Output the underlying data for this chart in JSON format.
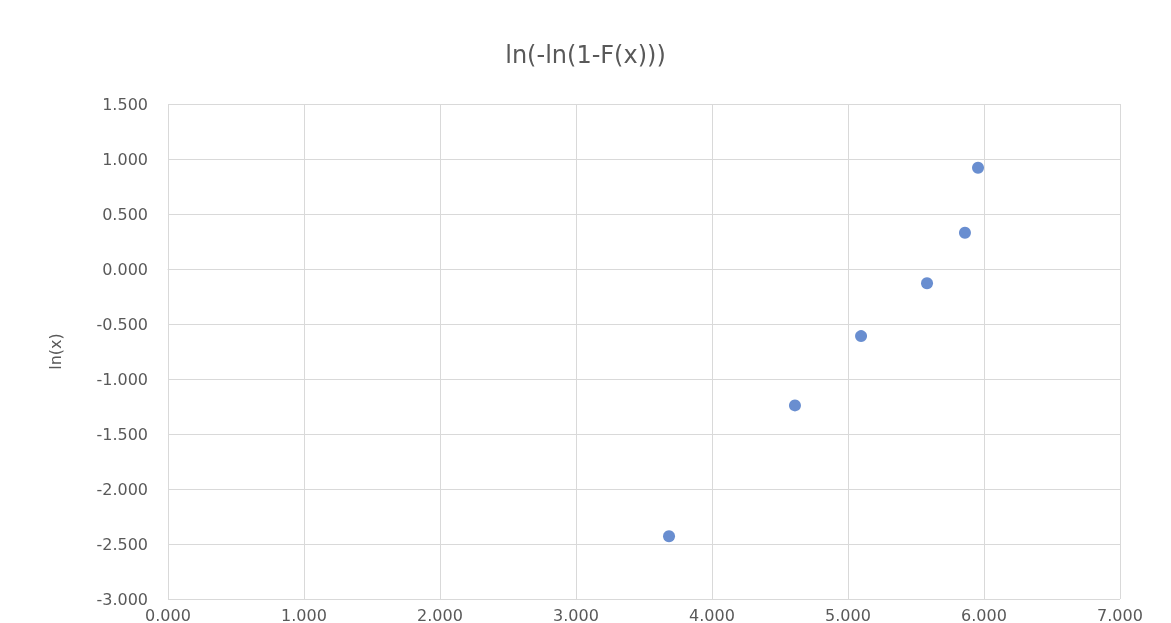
{
  "chart_data": {
    "type": "scatter",
    "title": "ln(-ln(1-F(x)))",
    "ylabel": "ln(x)",
    "x": [
      3.684,
      4.61,
      5.096,
      5.581,
      5.86,
      5.956
    ],
    "series": [
      {
        "color": "#4472c4",
        "values": [
          -2.43,
          -1.24,
          -0.61,
          -0.13,
          0.33,
          0.92
        ]
      }
    ],
    "xlim": [
      0,
      7
    ],
    "xticks": [
      {
        "value": 0,
        "label": "0.000"
      },
      {
        "value": 1,
        "label": "1.000"
      },
      {
        "value": 2,
        "label": "2.000"
      },
      {
        "value": 3,
        "label": "3.000"
      },
      {
        "value": 4,
        "label": "4.000"
      },
      {
        "value": 5,
        "label": "5.000"
      },
      {
        "value": 6,
        "label": "6.000"
      },
      {
        "value": 7,
        "label": "7.000"
      }
    ],
    "ylim": [
      -3,
      1.5
    ],
    "yticks": [
      {
        "value": -3,
        "label": "-3.000"
      },
      {
        "value": -2.5,
        "label": "-2.500"
      },
      {
        "value": -2,
        "label": "-2.000"
      },
      {
        "value": -1.5,
        "label": "-1.500"
      },
      {
        "value": -1,
        "label": "-1.000"
      },
      {
        "value": -0.5,
        "label": "-0.500"
      },
      {
        "value": 0,
        "label": "0.000"
      },
      {
        "value": 0.5,
        "label": "0.500"
      },
      {
        "value": 1,
        "label": "1.000"
      },
      {
        "value": 1.5,
        "label": "1.500"
      }
    ],
    "grid": true,
    "marker": "circle"
  }
}
